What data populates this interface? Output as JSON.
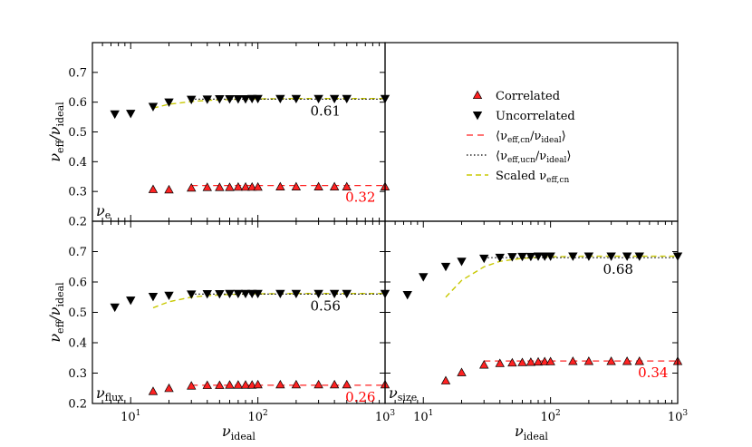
{
  "chart_data": {
    "type": "scatter",
    "x_scale": "log",
    "xlim": [
      5,
      1000
    ],
    "ylim": [
      0.2,
      0.8
    ],
    "xlabel": "ν_ideal",
    "xlabel_main": "ν",
    "xlabel_sub": "ideal",
    "ylabel_main": "ν",
    "ylabel_sub_num": "eff",
    "ylabel_sep": "/",
    "ylabel_sub_den": "ideal",
    "x_ticks": [
      {
        "value": 10,
        "base": "10",
        "exp": "1"
      },
      {
        "value": 100,
        "base": "10",
        "exp": "2"
      },
      {
        "value": 1000,
        "base": "10",
        "exp": "3"
      }
    ],
    "y_ticks": [
      "0.2",
      "0.3",
      "0.4",
      "0.5",
      "0.6",
      "0.7"
    ],
    "colors": {
      "correlated": "#ff2222",
      "uncorrelated": "#000000",
      "scaled": "#c8c800",
      "red_text": "#ff0000"
    },
    "legend": {
      "position": "top-right panel",
      "items": [
        {
          "kind": "marker-up",
          "label": "Correlated"
        },
        {
          "kind": "marker-down",
          "label": "Uncorrelated"
        },
        {
          "kind": "dash-red",
          "pre": "⟨ν",
          "sub": "eff,cn",
          "mid": "/ν",
          "sub2": "ideal",
          "post": "⟩"
        },
        {
          "kind": "dot-black",
          "pre": "⟨ν",
          "sub": "eff,ucn",
          "mid": "/ν",
          "sub2": "ideal",
          "post": "⟩"
        },
        {
          "kind": "dash-yellow",
          "pre": "Scaled ν",
          "sub": "eff,cn",
          "mid": "",
          "sub2": "",
          "post": ""
        }
      ]
    },
    "panels": [
      {
        "id": "e",
        "position": "top-left",
        "label_main": "ν",
        "label_sub": "e",
        "correlated": {
          "x": [
            15,
            20,
            30,
            40,
            50,
            60,
            70,
            80,
            90,
            100,
            150,
            200,
            300,
            400,
            500,
            1000
          ],
          "y": [
            0.307,
            0.306,
            0.312,
            0.314,
            0.314,
            0.314,
            0.315,
            0.315,
            0.315,
            0.315,
            0.316,
            0.316,
            0.316,
            0.316,
            0.316,
            0.316
          ]
        },
        "uncorrelated": {
          "x": [
            7.5,
            10,
            15,
            20,
            30,
            40,
            50,
            60,
            70,
            80,
            90,
            100,
            150,
            200,
            300,
            400,
            500,
            1000
          ],
          "y": [
            0.56,
            0.562,
            0.585,
            0.6,
            0.609,
            0.61,
            0.611,
            0.611,
            0.611,
            0.611,
            0.612,
            0.612,
            0.612,
            0.612,
            0.612,
            0.612,
            0.612,
            0.612
          ]
        },
        "mean_correlated": {
          "value": 0.32,
          "label": "0.32",
          "x_range": [
            30,
            1000
          ]
        },
        "mean_uncorrelated": {
          "value": 0.61,
          "label": "0.61",
          "x_range": [
            30,
            1000
          ]
        },
        "scaled": {
          "x": [
            15,
            20,
            30,
            40,
            60,
            100,
            200,
            500,
            1000
          ],
          "y": [
            0.58,
            0.593,
            0.602,
            0.606,
            0.609,
            0.611,
            0.612,
            0.612,
            0.612
          ]
        }
      },
      {
        "id": "flux",
        "position": "bottom-left",
        "label_main": "ν",
        "label_sub": "flux",
        "correlated": {
          "x": [
            15,
            20,
            30,
            40,
            50,
            60,
            70,
            80,
            90,
            100,
            150,
            200,
            300,
            400,
            500,
            1000
          ],
          "y": [
            0.24,
            0.25,
            0.258,
            0.26,
            0.26,
            0.261,
            0.261,
            0.261,
            0.261,
            0.262,
            0.262,
            0.262,
            0.262,
            0.262,
            0.262,
            0.262
          ]
        },
        "uncorrelated": {
          "x": [
            7.5,
            10,
            15,
            20,
            30,
            40,
            50,
            60,
            70,
            80,
            90,
            100,
            150,
            200,
            300,
            400,
            500,
            1000
          ],
          "y": [
            0.517,
            0.54,
            0.552,
            0.556,
            0.56,
            0.561,
            0.561,
            0.562,
            0.562,
            0.562,
            0.562,
            0.562,
            0.562,
            0.562,
            0.562,
            0.562,
            0.562,
            0.562
          ]
        },
        "mean_correlated": {
          "value": 0.26,
          "label": "0.26",
          "x_range": [
            30,
            1000
          ]
        },
        "mean_uncorrelated": {
          "value": 0.56,
          "label": "0.56",
          "x_range": [
            30,
            1000
          ]
        },
        "scaled": {
          "x": [
            15,
            20,
            30,
            40,
            60,
            100,
            200,
            500,
            1000
          ],
          "y": [
            0.515,
            0.535,
            0.55,
            0.555,
            0.559,
            0.561,
            0.562,
            0.562,
            0.562
          ]
        }
      },
      {
        "id": "size",
        "position": "bottom-right",
        "label_main": "ν",
        "label_sub": "size",
        "correlated": {
          "x": [
            15,
            20,
            30,
            40,
            50,
            60,
            70,
            80,
            90,
            100,
            150,
            200,
            300,
            400,
            500,
            1000
          ],
          "y": [
            0.275,
            0.302,
            0.327,
            0.332,
            0.334,
            0.335,
            0.336,
            0.337,
            0.338,
            0.338,
            0.339,
            0.339,
            0.339,
            0.339,
            0.339,
            0.339
          ]
        },
        "uncorrelated": {
          "x": [
            7.5,
            10,
            15,
            20,
            30,
            40,
            50,
            60,
            70,
            80,
            90,
            100,
            150,
            200,
            300,
            400,
            500,
            1000
          ],
          "y": [
            0.558,
            0.617,
            0.651,
            0.668,
            0.678,
            0.681,
            0.683,
            0.684,
            0.684,
            0.685,
            0.685,
            0.685,
            0.685,
            0.685,
            0.685,
            0.685,
            0.685,
            0.685
          ]
        },
        "mean_correlated": {
          "value": 0.34,
          "label": "0.34",
          "x_range": [
            30,
            1000
          ]
        },
        "mean_uncorrelated": {
          "value": 0.68,
          "label": "0.68",
          "x_range": [
            30,
            1000
          ]
        },
        "scaled": {
          "x": [
            15,
            20,
            30,
            40,
            60,
            100,
            200,
            500,
            1000
          ],
          "y": [
            0.55,
            0.605,
            0.65,
            0.668,
            0.678,
            0.683,
            0.685,
            0.685,
            0.685
          ]
        }
      }
    ]
  }
}
